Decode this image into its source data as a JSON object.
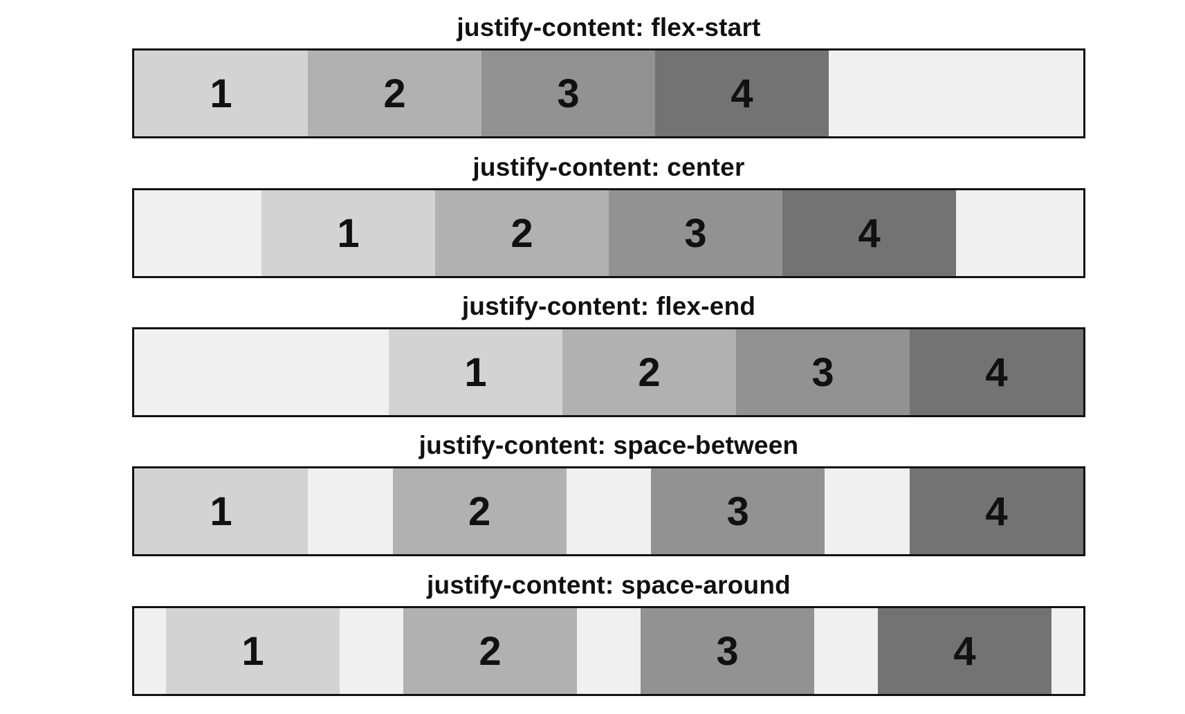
{
  "rows": [
    {
      "title": "justify-content: flex-start",
      "justify": "flex-start",
      "items": [
        "1",
        "2",
        "3",
        "4"
      ]
    },
    {
      "title": "justify-content: center",
      "justify": "center",
      "items": [
        "1",
        "2",
        "3",
        "4"
      ]
    },
    {
      "title": "justify-content: flex-end",
      "justify": "flex-end",
      "items": [
        "1",
        "2",
        "3",
        "4"
      ]
    },
    {
      "title": "justify-content: space-between",
      "justify": "space-between",
      "items": [
        "1",
        "2",
        "3",
        "4"
      ]
    },
    {
      "title": "justify-content: space-around",
      "justify": "space-around",
      "items": [
        "1",
        "2",
        "3",
        "4"
      ]
    }
  ],
  "colors": {
    "track_bg": "#f0f0f0",
    "border": "#111111",
    "item_1": "#d3d3d3",
    "item_2": "#b1b1b1",
    "item_3": "#929292",
    "item_4": "#737373"
  }
}
